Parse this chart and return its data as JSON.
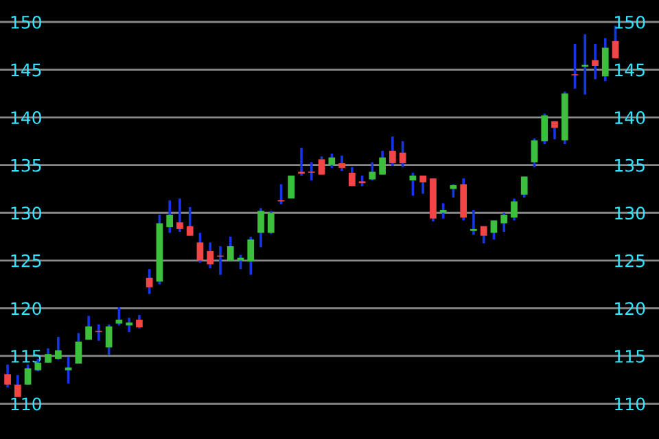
{
  "chart_data": {
    "type": "candlestick",
    "categories": [
      null,
      null,
      null,
      null,
      null,
      null,
      null,
      null,
      null,
      null,
      null,
      null,
      null,
      null,
      null,
      null,
      null,
      null,
      null,
      null,
      null,
      null,
      null,
      null,
      null,
      null,
      null,
      null,
      null,
      null,
      null,
      null,
      null,
      null,
      null,
      null,
      null,
      null,
      null,
      null,
      null,
      null,
      null,
      null,
      null,
      null,
      null,
      null,
      null,
      null,
      null,
      null,
      null,
      null,
      null,
      null,
      null,
      null,
      null,
      null,
      null
    ],
    "ohlc": [
      [
        113.1,
        114.1,
        111.7,
        112.0
      ],
      [
        112.0,
        113.0,
        110.7,
        110.7
      ],
      [
        112.0,
        114.1,
        112.0,
        113.7
      ],
      [
        113.5,
        114.7,
        113.4,
        114.3
      ],
      [
        114.3,
        115.8,
        114.3,
        115.2
      ],
      [
        114.7,
        117.0,
        114.6,
        115.6
      ],
      [
        113.5,
        114.9,
        112.1,
        113.8
      ],
      [
        114.2,
        117.4,
        114.2,
        116.5
      ],
      [
        116.7,
        119.2,
        116.7,
        118.1
      ],
      [
        117.6,
        118.3,
        116.6,
        117.5
      ],
      [
        115.9,
        118.3,
        115.1,
        118.1
      ],
      [
        118.4,
        120.1,
        118.2,
        118.8
      ],
      [
        118.2,
        119.0,
        117.5,
        118.5
      ],
      [
        118.8,
        119.3,
        117.9,
        118.0
      ],
      [
        123.2,
        124.1,
        121.5,
        122.2
      ],
      [
        122.8,
        129.8,
        122.5,
        128.9
      ],
      [
        128.5,
        131.3,
        127.9,
        129.8
      ],
      [
        129.0,
        131.5,
        128.0,
        128.3
      ],
      [
        128.6,
        130.6,
        127.6,
        127.6
      ],
      [
        126.9,
        127.9,
        124.8,
        125.0
      ],
      [
        126.0,
        126.9,
        124.2,
        124.6
      ],
      [
        125.5,
        126.5,
        123.5,
        125.4
      ],
      [
        125.0,
        127.5,
        125.0,
        126.5
      ],
      [
        125.0,
        125.6,
        124.1,
        125.3
      ],
      [
        124.9,
        127.5,
        123.5,
        127.2
      ],
      [
        127.9,
        130.5,
        126.4,
        130.2
      ],
      [
        127.9,
        130.2,
        127.8,
        130.0
      ],
      [
        131.3,
        133.0,
        130.9,
        131.2
      ],
      [
        131.5,
        133.9,
        131.5,
        133.9
      ],
      [
        134.3,
        136.8,
        133.9,
        134.1
      ],
      [
        134.3,
        135.3,
        133.4,
        134.2
      ],
      [
        135.6,
        135.9,
        134.0,
        134.0
      ],
      [
        135.0,
        136.2,
        134.7,
        135.8
      ],
      [
        135.2,
        136.0,
        134.4,
        134.7
      ],
      [
        134.2,
        134.8,
        132.8,
        132.8
      ],
      [
        133.3,
        133.9,
        132.8,
        133.1
      ],
      [
        133.5,
        135.3,
        133.4,
        134.3
      ],
      [
        134.0,
        136.5,
        134.0,
        135.8
      ],
      [
        136.5,
        138.0,
        134.9,
        135.2
      ],
      [
        136.3,
        137.5,
        134.8,
        135.2
      ],
      [
        133.4,
        134.2,
        131.8,
        133.9
      ],
      [
        133.9,
        133.9,
        132.0,
        133.2
      ],
      [
        133.6,
        133.6,
        129.1,
        129.4
      ],
      [
        130.0,
        131.0,
        129.4,
        130.3
      ],
      [
        132.5,
        133.0,
        131.6,
        132.9
      ],
      [
        133.0,
        133.6,
        129.2,
        129.5
      ],
      [
        128.1,
        130.3,
        127.7,
        128.3
      ],
      [
        128.6,
        128.6,
        126.8,
        127.6
      ],
      [
        127.9,
        129.2,
        127.2,
        129.2
      ],
      [
        128.9,
        130.0,
        128.0,
        129.8
      ],
      [
        129.5,
        131.5,
        129.2,
        131.2
      ],
      [
        131.9,
        133.8,
        131.6,
        133.8
      ],
      [
        135.3,
        137.8,
        134.8,
        137.6
      ],
      [
        137.5,
        140.4,
        137.2,
        140.2
      ],
      [
        139.6,
        139.6,
        137.7,
        138.9
      ],
      [
        137.6,
        142.7,
        137.2,
        142.5
      ],
      [
        144.5,
        147.7,
        143.0,
        144.4
      ],
      [
        145.3,
        148.7,
        142.4,
        145.5
      ],
      [
        146.0,
        147.7,
        144.0,
        145.4
      ],
      [
        144.3,
        148.3,
        143.8,
        147.3
      ],
      [
        148.0,
        149.6,
        146.2,
        146.2
      ]
    ],
    "ylim": [
      106.3,
      152.3
    ],
    "yticks": [
      110,
      115,
      120,
      125,
      130,
      135,
      140,
      145,
      150
    ],
    "y2lim": [
      106.3,
      152.3
    ],
    "y2ticks": [
      110,
      115,
      120,
      125,
      130,
      135,
      140,
      145,
      150
    ],
    "tick_labels": "y",
    "grid": "y"
  }
}
